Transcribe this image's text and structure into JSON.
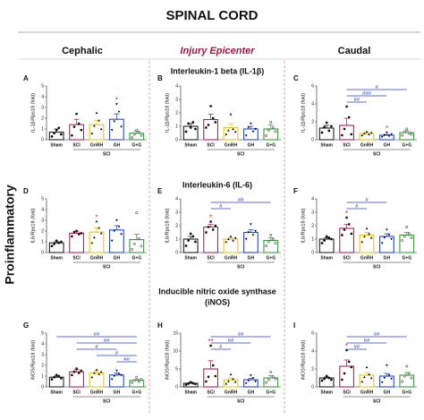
{
  "figure": {
    "title": "SPINAL CORD",
    "columns": [
      "Cephalic",
      "Injury Epicenter",
      "Caudal"
    ],
    "row_label": "Proinflammatory",
    "row_titles": [
      "Interleukin-1 beta (IL-1β)",
      "Interleukin-6 (IL-6)",
      "Inducible nitric oxide synthase",
      "(iNOS)"
    ]
  },
  "chart_data": [
    {
      "type": "bar",
      "letter": "A",
      "ylabel": "IL-1β/Rps18 (fold)",
      "categories": [
        "Sham",
        "SCI",
        "GnRH",
        "GH",
        "G+G"
      ],
      "group_label": "SCI",
      "colors": [
        "#222222",
        "#c2185b",
        "#e3c919",
        "#2848d0",
        "#3a9a3a"
      ],
      "ylim": [
        0,
        5
      ],
      "yticks": [
        0,
        1,
        2,
        3,
        4,
        5
      ],
      "values": [
        0.7,
        1.4,
        1.4,
        1.9,
        0.6
      ],
      "errors": [
        0.3,
        0.5,
        0.4,
        0.5,
        0.2
      ],
      "points": [
        [
          0.3,
          0.6,
          0.9,
          1.1,
          0.5
        ],
        [
          0.4,
          1.2,
          2.4,
          1.5,
          0.9
        ],
        [
          0.6,
          1.3,
          2.5,
          1.8,
          1.0
        ],
        [
          0.9,
          1.7,
          3.3,
          2.6,
          1.2
        ],
        [
          0.2,
          0.5,
          0.9,
          0.7,
          0.4
        ]
      ],
      "brackets": [],
      "stars": [
        {
          "category": "GH",
          "label": "*"
        }
      ]
    },
    {
      "type": "bar",
      "letter": "B",
      "ylabel": "IL-1β/Rps18 (fold)",
      "categories": [
        "Sham",
        "SCI",
        "GnRH",
        "GH",
        "G+G"
      ],
      "group_label": "SCI",
      "colors": [
        "#222222",
        "#c2185b",
        "#e3c919",
        "#2848d0",
        "#3a9a3a"
      ],
      "ylim": [
        0,
        4
      ],
      "yticks": [
        0,
        1,
        2,
        3,
        4
      ],
      "values": [
        1.0,
        1.5,
        0.9,
        0.8,
        0.8
      ],
      "errors": [
        0.2,
        0.4,
        0.3,
        0.2,
        0.3
      ],
      "points": [
        [
          0.6,
          1.2,
          0.9,
          1.3,
          0.8
        ],
        [
          0.9,
          1.1,
          2.5,
          1.6,
          1.3
        ],
        [
          0.4,
          0.7,
          1.9,
          0.8,
          0.6
        ],
        [
          0.3,
          0.9,
          1.2,
          0.6,
          0.8
        ],
        [
          0.3,
          0.7,
          1.3,
          0.9,
          0.6
        ]
      ],
      "brackets": [],
      "stars": []
    },
    {
      "type": "bar",
      "letter": "C",
      "ylabel": "IL-1β/Rps18 (fold)",
      "categories": [
        "Sham",
        "SCI",
        "GnRH",
        "GH",
        "G+G"
      ],
      "group_label": "SCI",
      "colors": [
        "#222222",
        "#c2185b",
        "#e3c919",
        "#2848d0",
        "#3a9a3a"
      ],
      "ylim": [
        0,
        6
      ],
      "yticks": [
        0,
        2,
        4,
        6
      ],
      "values": [
        1.3,
        1.6,
        0.7,
        0.5,
        0.8
      ],
      "errors": [
        0.3,
        0.8,
        0.1,
        0.1,
        0.2
      ],
      "points": [
        [
          0.8,
          1.4,
          1.9,
          1.0,
          1.5
        ],
        [
          0.5,
          1.2,
          3.7,
          2.5,
          0.6
        ],
        [
          0.5,
          0.7,
          0.9,
          0.6,
          0.8
        ],
        [
          0.3,
          0.5,
          0.8,
          0.4,
          0.6
        ],
        [
          0.5,
          0.9,
          1.2,
          0.7,
          0.6
        ]
      ],
      "brackets": [
        {
          "from": "SCI",
          "to": "GnRH",
          "label": "##"
        },
        {
          "from": "SCI",
          "to": "GH",
          "label": "###"
        },
        {
          "from": "SCI",
          "to": "G+G",
          "label": "#"
        }
      ],
      "stars": [
        {
          "category": "GH",
          "label": "*"
        }
      ]
    },
    {
      "type": "bar",
      "letter": "D",
      "ylabel": "IL6/Rps18 (fold)",
      "categories": [
        "Sham",
        "SCI",
        "GnRH",
        "GH",
        "G+G"
      ],
      "group_label": "SCI",
      "colors": [
        "#222222",
        "#c2185b",
        "#e3c919",
        "#2848d0",
        "#3a9a3a"
      ],
      "ylim": [
        0,
        5
      ],
      "yticks": [
        0,
        1,
        2,
        3,
        4,
        5
      ],
      "values": [
        0.9,
        1.8,
        1.9,
        2.1,
        1.2
      ],
      "errors": [
        0.1,
        0.2,
        0.4,
        0.4,
        0.5
      ],
      "points": [
        [
          0.6,
          0.8,
          1.1,
          0.9,
          1.0
        ],
        [
          1.5,
          1.9,
          2.0,
          1.7,
          1.8
        ],
        [
          0.9,
          1.4,
          2.9,
          2.3,
          1.8
        ],
        [
          1.1,
          2.0,
          3.0,
          2.4,
          1.7
        ],
        [
          0.3,
          0.8,
          3.7,
          1.3,
          0.6
        ]
      ],
      "brackets": [],
      "stars": [
        {
          "category": "GnRH",
          "label": "*"
        }
      ]
    },
    {
      "type": "bar",
      "letter": "E",
      "ylabel": "IL6/Rps18 (fold)",
      "categories": [
        "Sham",
        "SCI",
        "GnRH",
        "GH",
        "G+G"
      ],
      "group_label": "SCI",
      "colors": [
        "#222222",
        "#c2185b",
        "#e3c919",
        "#2848d0",
        "#3a9a3a"
      ],
      "ylim": [
        0,
        4
      ],
      "yticks": [
        0,
        1,
        2,
        3,
        4
      ],
      "values": [
        1.0,
        1.9,
        1.0,
        1.5,
        0.9
      ],
      "errors": [
        0.2,
        0.2,
        0.1,
        0.2,
        0.2
      ],
      "points": [
        [
          0.5,
          0.9,
          1.4,
          1.2,
          0.8
        ],
        [
          1.5,
          1.9,
          2.3,
          1.7,
          2.0
        ],
        [
          0.8,
          1.0,
          1.2,
          0.9,
          1.1
        ],
        [
          1.0,
          1.5,
          2.1,
          1.3,
          1.6
        ],
        [
          0.5,
          0.8,
          1.3,
          1.0,
          0.7
        ]
      ],
      "brackets": [
        {
          "from": "SCI",
          "to": "GnRH",
          "label": "#"
        },
        {
          "from": "SCI",
          "to": "G+G",
          "label": "##"
        }
      ],
      "stars": [
        {
          "category": "SCI",
          "label": "*"
        }
      ]
    },
    {
      "type": "bar",
      "letter": "F",
      "ylabel": "IL6/Rps18 (fold)",
      "categories": [
        "Sham",
        "SCI",
        "GnRH",
        "GH",
        "G+G"
      ],
      "group_label": "SCI",
      "colors": [
        "#222222",
        "#c2185b",
        "#e3c919",
        "#2848d0",
        "#3a9a3a"
      ],
      "ylim": [
        0,
        4
      ],
      "yticks": [
        0,
        1,
        2,
        3,
        4
      ],
      "values": [
        1.0,
        1.8,
        1.3,
        1.2,
        1.3
      ],
      "errors": [
        0.1,
        0.3,
        0.2,
        0.2,
        0.2
      ],
      "points": [
        [
          0.7,
          0.9,
          1.2,
          1.1,
          1.0
        ],
        [
          1.3,
          1.7,
          2.6,
          2.1,
          1.4
        ],
        [
          0.8,
          1.2,
          1.8,
          1.4,
          1.1
        ],
        [
          0.7,
          1.1,
          1.7,
          1.3,
          1.0
        ],
        [
          0.9,
          1.2,
          1.9,
          1.4,
          1.1
        ]
      ],
      "brackets": [
        {
          "from": "SCI",
          "to": "GnRH",
          "label": "#"
        },
        {
          "from": "SCI",
          "to": "GH",
          "label": "#"
        }
      ],
      "stars": [
        {
          "category": "SCI",
          "label": "*"
        }
      ]
    },
    {
      "type": "bar",
      "letter": "G",
      "ylabel": "iNOS/Rps18 (fold)",
      "categories": [
        "Sham",
        "SCI",
        "GnRH",
        "GH",
        "G+G"
      ],
      "group_label": "SCI",
      "colors": [
        "#222222",
        "#c2185b",
        "#e3c919",
        "#2848d0",
        "#3a9a3a"
      ],
      "ylim": [
        0,
        5
      ],
      "yticks": [
        0,
        1,
        2,
        3,
        4,
        5
      ],
      "values": [
        0.9,
        1.4,
        1.3,
        1.1,
        0.6
      ],
      "errors": [
        0.1,
        0.2,
        0.2,
        0.2,
        0.1
      ],
      "points": [
        [
          0.7,
          0.9,
          1.1,
          1.0,
          0.8
        ],
        [
          1.1,
          1.4,
          1.7,
          1.3,
          1.5
        ],
        [
          0.9,
          1.3,
          1.6,
          1.2,
          1.4
        ],
        [
          0.7,
          1.0,
          1.5,
          1.2,
          1.1
        ],
        [
          0.4,
          0.6,
          0.9,
          0.5,
          0.7
        ]
      ],
      "brackets": [
        {
          "from": "GH",
          "to": "G+G",
          "label": "##"
        },
        {
          "from": "GnRH",
          "to": "G+G",
          "label": "#"
        },
        {
          "from": "SCI",
          "to": "GH",
          "label": "#"
        },
        {
          "from": "SCI",
          "to": "G+G",
          "label": "##"
        },
        {
          "from": "Sham",
          "to": "G+G",
          "label": "##"
        }
      ],
      "stars": []
    },
    {
      "type": "bar",
      "letter": "H",
      "ylabel": "iNOS/Rps18 (fold)",
      "categories": [
        "Sham",
        "SCI",
        "GnRH",
        "GH",
        "G+G"
      ],
      "group_label": "SCI",
      "colors": [
        "#222222",
        "#c2185b",
        "#e3c919",
        "#2848d0",
        "#3a9a3a"
      ],
      "ylim": [
        0,
        15
      ],
      "yticks": [
        0,
        5,
        10,
        15
      ],
      "values": [
        1.0,
        5.0,
        2.0,
        2.0,
        2.5
      ],
      "errors": [
        0.2,
        2.3,
        0.5,
        0.4,
        0.6
      ],
      "points": [
        [
          0.6,
          0.9,
          1.3,
          1.0,
          0.8
        ],
        [
          1.5,
          2.8,
          11.5,
          6.0,
          3.0
        ],
        [
          0.9,
          1.6,
          3.5,
          2.2,
          1.4
        ],
        [
          1.0,
          1.7,
          3.2,
          2.4,
          1.5
        ],
        [
          1.2,
          2.0,
          4.1,
          2.8,
          2.2
        ]
      ],
      "brackets": [
        {
          "from": "SCI",
          "to": "GnRH",
          "label": "#"
        },
        {
          "from": "SCI",
          "to": "GH",
          "label": "##"
        },
        {
          "from": "SCI",
          "to": "G+G",
          "label": "##"
        }
      ],
      "stars": [
        {
          "category": "SCI",
          "label": "**"
        }
      ]
    },
    {
      "type": "bar",
      "letter": "I",
      "ylabel": "iNOS/Rps18 (fold)",
      "categories": [
        "Sham",
        "SCI",
        "GnRH",
        "GH",
        "G+G"
      ],
      "group_label": "SCI",
      "colors": [
        "#222222",
        "#c2185b",
        "#e3c919",
        "#2848d0",
        "#3a9a3a"
      ],
      "ylim": [
        0,
        6
      ],
      "yticks": [
        0,
        2,
        4,
        6
      ],
      "values": [
        1.0,
        2.3,
        1.3,
        1.2,
        1.3
      ],
      "errors": [
        0.1,
        0.7,
        0.3,
        0.3,
        0.3
      ],
      "points": [
        [
          0.7,
          0.9,
          1.2,
          1.0,
          0.8
        ],
        [
          0.8,
          1.5,
          4.1,
          2.8,
          2.2
        ],
        [
          0.6,
          1.1,
          2.2,
          1.4,
          1.0
        ],
        [
          0.5,
          1.0,
          2.4,
          1.3,
          0.9
        ],
        [
          0.6,
          1.2,
          2.3,
          1.5,
          1.0
        ]
      ],
      "brackets": [
        {
          "from": "SCI",
          "to": "GnRH",
          "label": "##"
        },
        {
          "from": "SCI",
          "to": "GH",
          "label": "##"
        },
        {
          "from": "SCI",
          "to": "G+G",
          "label": "##"
        }
      ],
      "stars": [
        {
          "category": "SCI",
          "label": "*"
        }
      ]
    }
  ]
}
